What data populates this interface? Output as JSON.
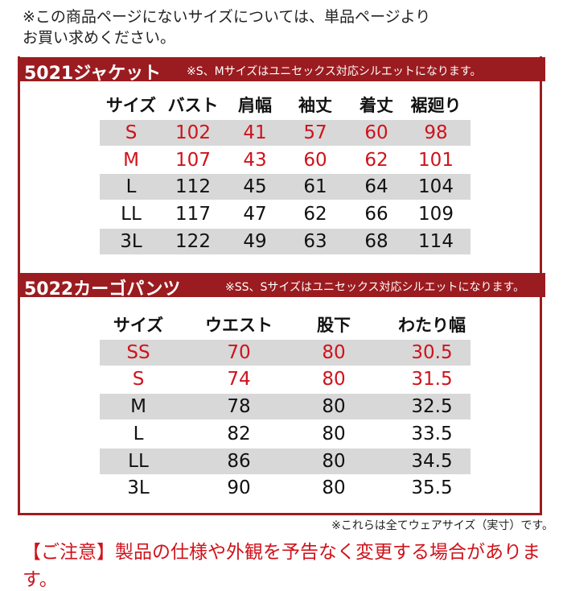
{
  "top_note": [
    "※この商品ページにないサイズについては、単品ページより",
    "お買い求めください。"
  ],
  "sections": [
    {
      "name": "5021ジャケット",
      "note": "※S、Mサイズはユニセックス対応シルエットになります。",
      "table": {
        "header": [
          "サイズ",
          "バスト",
          "肩幅",
          "袖丈",
          "着丈",
          "裾廻り"
        ],
        "rows": [
          [
            "S",
            "102",
            "41",
            "57",
            "60",
            "98"
          ],
          [
            "M",
            "107",
            "43",
            "60",
            "62",
            "101"
          ],
          [
            "L",
            "112",
            "45",
            "61",
            "64",
            "104"
          ],
          [
            "LL",
            "117",
            "47",
            "62",
            "66",
            "109"
          ],
          [
            "3L",
            "122",
            "49",
            "63",
            "68",
            "114"
          ]
        ]
      }
    },
    {
      "name": "5022カーゴパンツ",
      "note": "※SS、Sサイズはユニセックス対応シルエットになります。",
      "table": {
        "header": [
          "サイズ",
          "ウエスト",
          "股下",
          "わたり幅"
        ],
        "rows": [
          [
            "SS",
            "70",
            "80",
            "30.5"
          ],
          [
            "S",
            "74",
            "80",
            "31.5"
          ],
          [
            "M",
            "78",
            "80",
            "32.5"
          ],
          [
            "L",
            "82",
            "80",
            "33.5"
          ],
          [
            "LL",
            "86",
            "80",
            "34.5"
          ],
          [
            "3L",
            "90",
            "80",
            "35.5"
          ]
        ]
      }
    }
  ],
  "footer_note": "※これらは全てウェアサイズ（実寸）です。",
  "warning": "【ご注意】製品の仕様や外観を予告なく変更する場合があります。"
}
